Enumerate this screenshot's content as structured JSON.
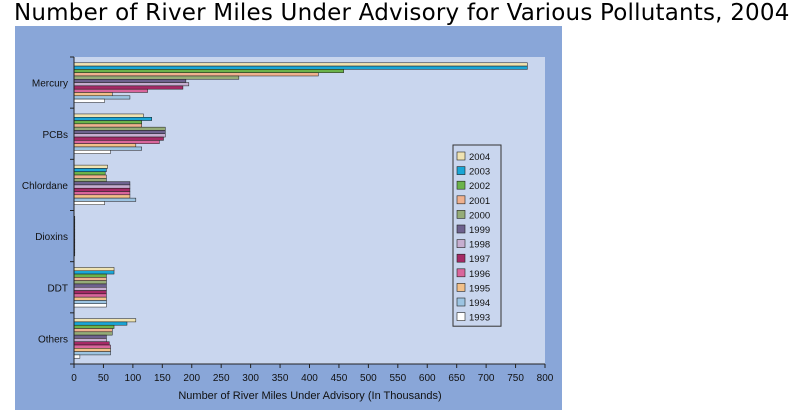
{
  "title": "Number of River Miles Under Advisory for Various Pollutants, 2004",
  "chart_data": {
    "type": "bar",
    "orientation": "horizontal",
    "title": "Number of River Miles Under Advisory for Various Pollutants, 2004",
    "xlabel": "Number of River Miles Under Advisory (In Thousands)",
    "ylabel": "",
    "xlim": [
      0,
      800
    ],
    "xticks": [
      "0",
      "50",
      "100",
      "150",
      "200",
      "250",
      "300",
      "350",
      "400",
      "450",
      "500",
      "550",
      "600",
      "650",
      "700",
      "750",
      "800"
    ],
    "grid": false,
    "legend_position": "right",
    "categories": [
      "Mercury",
      "PCBs",
      "Chlordane",
      "Dioxins",
      "DDT",
      "Others"
    ],
    "series": [
      {
        "name": "2004",
        "color": "#efe3b2",
        "values": [
          770,
          118,
          57,
          1,
          68,
          105
        ]
      },
      {
        "name": "2003",
        "color": "#1aa6d6",
        "values": [
          770,
          132,
          55,
          1,
          68,
          90
        ]
      },
      {
        "name": "2002",
        "color": "#6bb34a",
        "values": [
          458,
          115,
          53,
          1,
          55,
          68
        ]
      },
      {
        "name": "2001",
        "color": "#efb18f",
        "values": [
          415,
          115,
          55,
          1,
          55,
          65
        ]
      },
      {
        "name": "2000",
        "color": "#95ac78",
        "values": [
          280,
          155,
          55,
          1,
          55,
          65
        ]
      },
      {
        "name": "1999",
        "color": "#6e628e",
        "values": [
          190,
          155,
          95,
          1,
          55,
          55
        ]
      },
      {
        "name": "1998",
        "color": "#c6aed0",
        "values": [
          195,
          155,
          95,
          1,
          55,
          55
        ]
      },
      {
        "name": "1997",
        "color": "#a52a66",
        "values": [
          185,
          152,
          95,
          1,
          55,
          60
        ]
      },
      {
        "name": "1996",
        "color": "#d9669c",
        "values": [
          125,
          145,
          95,
          1,
          55,
          62
        ]
      },
      {
        "name": "1995",
        "color": "#f2c089",
        "values": [
          65,
          105,
          95,
          1,
          55,
          62
        ]
      },
      {
        "name": "1994",
        "color": "#9cc4e2",
        "values": [
          95,
          115,
          105,
          1,
          55,
          62
        ]
      },
      {
        "name": "1993",
        "color": "#ffffff",
        "values": [
          52,
          62,
          52,
          1,
          55,
          10
        ]
      }
    ]
  }
}
